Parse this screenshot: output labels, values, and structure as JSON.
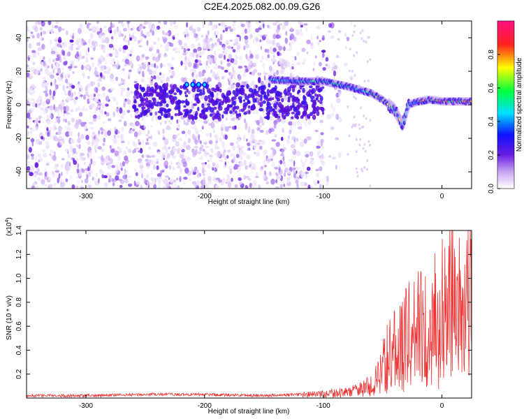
{
  "chart_data": [
    {
      "type": "heatmap",
      "title": "C2E4.2025.082.00.09.G26",
      "xlabel": "Height of straight line (km)",
      "ylabel": "Frequency (Hz)",
      "xlim": [
        -350,
        25
      ],
      "ylim": [
        -50,
        50
      ],
      "x_ticks": [
        -300,
        -200,
        -100,
        0
      ],
      "y_ticks": [
        -40,
        -20,
        0,
        20,
        40
      ],
      "colorbar": {
        "label": "Normalized spectral amplitude",
        "range": [
          0,
          1
        ],
        "ticks": [
          "0.0",
          "0.2",
          "0.4",
          "0.6",
          "0.8"
        ],
        "colors": [
          "#ffffff",
          "#c9a6f5",
          "#6a1ee0",
          "#1010ff",
          "#00e0ff",
          "#00ff40",
          "#ffff00",
          "#ff2020",
          "#ff1080"
        ]
      },
      "ridge": {
        "x": [
          -145,
          -120,
          -100,
          -80,
          -60,
          -50,
          -40,
          -33,
          -28,
          -20,
          -10,
          0,
          10,
          25
        ],
        "y": [
          15,
          14,
          14,
          11,
          7,
          3,
          -3,
          -12,
          0,
          2,
          3,
          2,
          2,
          2
        ]
      },
      "noise_cutoff_x": -80
    },
    {
      "type": "line",
      "title": "",
      "xlabel": "Height of straight line (km)",
      "ylabel": "SNR (10 * v/v)",
      "yscale_label": "(x10",
      "yscale_exp": "4",
      "xlim": [
        -350,
        25
      ],
      "ylim": [
        0,
        1.4
      ],
      "x_ticks": [
        -300,
        -200,
        -100,
        0
      ],
      "y_ticks": [
        "0.2",
        "0.4",
        "0.6",
        "0.8",
        "1.0",
        "1.2",
        "1.4"
      ],
      "color": "#ee3333",
      "series": [
        {
          "x": [
            -350,
            -300,
            -250,
            -200,
            -150,
            -120,
            -100,
            -90,
            -80,
            -70,
            -60,
            -55,
            -50,
            -45,
            -40,
            -35,
            -30,
            -25,
            -20,
            -15,
            -10,
            -5,
            0,
            5,
            10,
            15,
            20,
            25
          ],
          "y": [
            0.02,
            0.02,
            0.03,
            0.03,
            0.02,
            0.03,
            0.03,
            0.04,
            0.05,
            0.07,
            0.1,
            0.15,
            0.25,
            0.35,
            0.4,
            0.45,
            0.5,
            0.55,
            0.6,
            0.55,
            0.6,
            0.65,
            0.7,
            0.75,
            0.8,
            0.85,
            0.95,
            1.1
          ]
        }
      ]
    }
  ]
}
